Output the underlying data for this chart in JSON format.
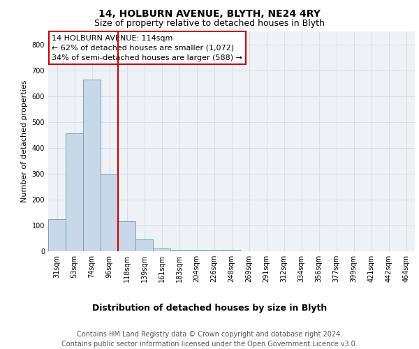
{
  "title1": "14, HOLBURN AVENUE, BLYTH, NE24 4RY",
  "title2": "Size of property relative to detached houses in Blyth",
  "xlabel": "Distribution of detached houses by size in Blyth",
  "ylabel": "Number of detached properties",
  "footer": "Contains HM Land Registry data © Crown copyright and database right 2024.\nContains public sector information licensed under the Open Government Licence v3.0.",
  "bin_labels": [
    "31sqm",
    "53sqm",
    "74sqm",
    "96sqm",
    "118sqm",
    "139sqm",
    "161sqm",
    "183sqm",
    "204sqm",
    "226sqm",
    "248sqm",
    "269sqm",
    "291sqm",
    "312sqm",
    "334sqm",
    "356sqm",
    "377sqm",
    "399sqm",
    "421sqm",
    "442sqm",
    "464sqm"
  ],
  "bar_values": [
    125,
    455,
    665,
    300,
    115,
    45,
    10,
    5,
    5,
    5,
    5,
    0,
    0,
    0,
    0,
    0,
    0,
    0,
    0,
    0,
    0
  ],
  "bar_color": "#c8d8e8",
  "bar_edge_color": "#6699bb",
  "property_line_color": "#cc0000",
  "property_line_x": 3.5,
  "annotation_text": "14 HOLBURN AVENUE: 114sqm\n← 62% of detached houses are smaller (1,072)\n34% of semi-detached houses are larger (588) →",
  "annotation_box_color": "#cc0000",
  "ylim": [
    0,
    850
  ],
  "yticks": [
    0,
    100,
    200,
    300,
    400,
    500,
    600,
    700,
    800
  ],
  "background_color": "#eef2f7",
  "grid_color": "#d8e0ea",
  "title1_fontsize": 10,
  "title2_fontsize": 9,
  "annotation_fontsize": 8,
  "footer_fontsize": 7,
  "ylabel_fontsize": 8,
  "xlabel_fontsize": 9,
  "tick_fontsize": 7
}
